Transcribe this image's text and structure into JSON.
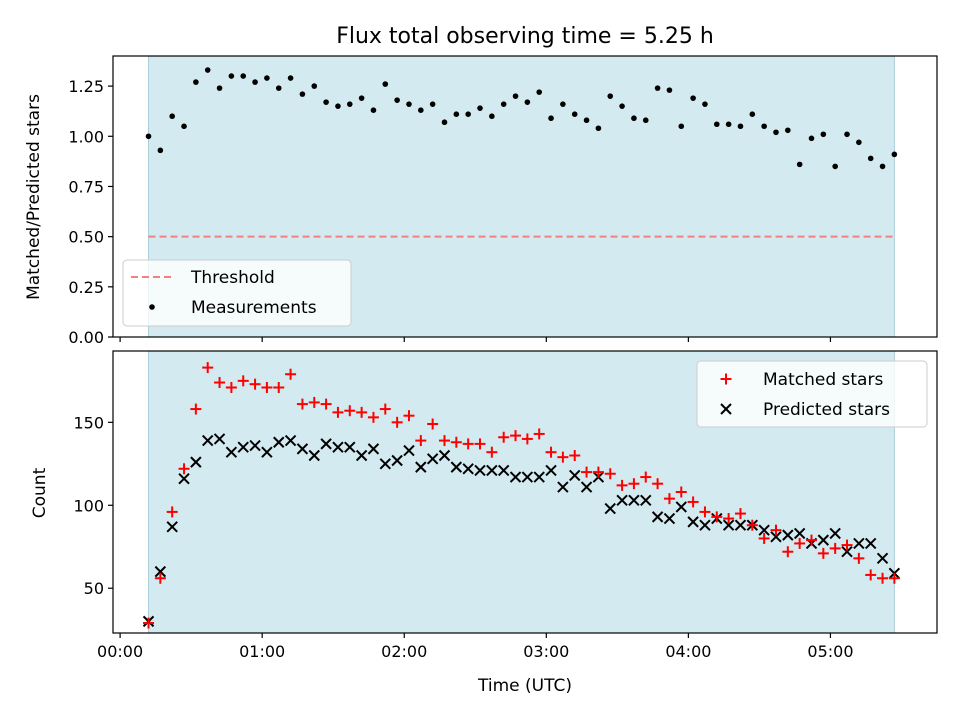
{
  "figure": {
    "title": "Flux total observing time = 5.25 h",
    "xlabel": "Time (UTC)",
    "x_tick_labels": [
      "00:00",
      "01:00",
      "02:00",
      "03:00",
      "04:00",
      "05:00"
    ]
  },
  "colors": {
    "shade": "#d3eaf0",
    "threshold": "#f28080",
    "matched": "#ff0000",
    "predicted": "#000000",
    "measurement": "#000000"
  },
  "chart_data": [
    {
      "type": "scatter",
      "ylabel": "Matched/Predicted stars",
      "xlim": [
        "23:57",
        "05:45"
      ],
      "ylim": [
        0,
        1.4
      ],
      "shaded_interval": [
        "00:12",
        "05:27"
      ],
      "y_tick_labels": [
        "0.00",
        "0.25",
        "0.50",
        "0.75",
        "1.00",
        "1.25"
      ],
      "threshold": 0.5,
      "legend": {
        "position": "lower-left",
        "entries": [
          "Threshold",
          "Measurements"
        ]
      },
      "series": [
        {
          "name": "Measurements",
          "x": [
            "00:12",
            "00:17",
            "00:22",
            "00:27",
            "00:32",
            "00:37",
            "00:42",
            "00:47",
            "00:52",
            "00:57",
            "01:02",
            "01:07",
            "01:12",
            "01:17",
            "01:22",
            "01:27",
            "01:32",
            "01:37",
            "01:42",
            "01:47",
            "01:52",
            "01:57",
            "02:02",
            "02:07",
            "02:12",
            "02:17",
            "02:22",
            "02:27",
            "02:32",
            "02:37",
            "02:42",
            "02:47",
            "02:52",
            "02:57",
            "03:02",
            "03:07",
            "03:12",
            "03:17",
            "03:22",
            "03:27",
            "03:32",
            "03:37",
            "03:42",
            "03:47",
            "03:52",
            "03:57",
            "04:02",
            "04:07",
            "04:12",
            "04:17",
            "04:22",
            "04:27",
            "04:32",
            "04:37",
            "04:42",
            "04:47",
            "04:52",
            "04:57",
            "05:02",
            "05:07",
            "05:12",
            "05:17",
            "05:22",
            "05:27"
          ],
          "y": [
            1.0,
            0.93,
            1.1,
            1.05,
            1.27,
            1.33,
            1.24,
            1.3,
            1.3,
            1.27,
            1.29,
            1.24,
            1.29,
            1.21,
            1.25,
            1.17,
            1.15,
            1.16,
            1.19,
            1.13,
            1.26,
            1.18,
            1.16,
            1.13,
            1.16,
            1.07,
            1.11,
            1.11,
            1.14,
            1.1,
            1.16,
            1.2,
            1.17,
            1.22,
            1.09,
            1.16,
            1.11,
            1.08,
            1.04,
            1.2,
            1.15,
            1.09,
            1.08,
            1.24,
            1.23,
            1.05,
            1.19,
            1.16,
            1.06,
            1.06,
            1.05,
            1.11,
            1.05,
            1.02,
            1.03,
            0.86,
            0.99,
            1.01,
            0.85,
            1.01,
            0.97,
            0.89,
            0.85,
            0.91
          ]
        }
      ]
    },
    {
      "type": "scatter",
      "ylabel": "Count",
      "xlim": [
        "23:57",
        "05:45"
      ],
      "ylim": [
        23,
        193
      ],
      "shaded_interval": [
        "00:12",
        "05:27"
      ],
      "y_tick_labels": [
        "50",
        "100",
        "150"
      ],
      "legend": {
        "position": "upper-right",
        "entries": [
          "Matched stars",
          "Predicted stars"
        ]
      },
      "x": [
        "00:12",
        "00:17",
        "00:22",
        "00:27",
        "00:32",
        "00:37",
        "00:42",
        "00:47",
        "00:52",
        "00:57",
        "01:02",
        "01:07",
        "01:12",
        "01:17",
        "01:22",
        "01:27",
        "01:32",
        "01:37",
        "01:42",
        "01:47",
        "01:52",
        "01:57",
        "02:02",
        "02:07",
        "02:12",
        "02:17",
        "02:22",
        "02:27",
        "02:32",
        "02:37",
        "02:42",
        "02:47",
        "02:52",
        "02:57",
        "03:02",
        "03:07",
        "03:12",
        "03:17",
        "03:22",
        "03:27",
        "03:32",
        "03:37",
        "03:42",
        "03:47",
        "03:52",
        "03:57",
        "04:02",
        "04:07",
        "04:12",
        "04:17",
        "04:22",
        "04:27",
        "04:32",
        "04:37",
        "04:42",
        "04:47",
        "04:52",
        "04:57",
        "05:02",
        "05:07",
        "05:12",
        "05:17",
        "05:22",
        "05:27"
      ],
      "series": [
        {
          "name": "Matched stars",
          "values": [
            29,
            56,
            96,
            122,
            158,
            183,
            174,
            171,
            175,
            173,
            171,
            171,
            179,
            161,
            162,
            161,
            156,
            157,
            156,
            153,
            158,
            150,
            154,
            139,
            149,
            139,
            138,
            137,
            137,
            132,
            141,
            142,
            140,
            143,
            132,
            129,
            130,
            120,
            120,
            119,
            112,
            113,
            117,
            113,
            104,
            108,
            102,
            96,
            93,
            92,
            95,
            88,
            80,
            85,
            72,
            77,
            79,
            71,
            74,
            76,
            68,
            58,
            56,
            56
          ]
        },
        {
          "name": "Predicted stars",
          "values": [
            30,
            60,
            87,
            116,
            126,
            139,
            140,
            132,
            135,
            136,
            132,
            138,
            139,
            134,
            130,
            137,
            135,
            135,
            130,
            134,
            125,
            127,
            133,
            123,
            128,
            130,
            123,
            122,
            121,
            121,
            121,
            117,
            117,
            117,
            121,
            111,
            118,
            111,
            117,
            98,
            103,
            103,
            103,
            93,
            92,
            99,
            90,
            88,
            92,
            88,
            88,
            88,
            85,
            81,
            82,
            83,
            77,
            79,
            83,
            72,
            77,
            77,
            68,
            59
          ]
        }
      ]
    }
  ]
}
